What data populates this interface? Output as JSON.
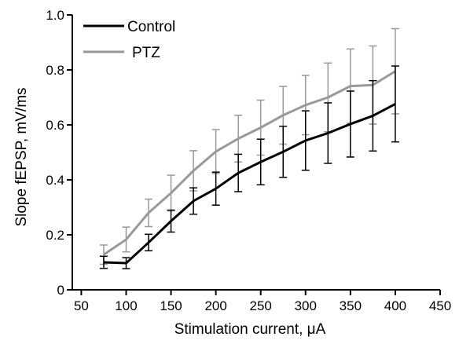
{
  "chart_data": {
    "type": "line",
    "xlabel": "Stimulation current, μA",
    "ylabel": "Slope fEPSP, mV/ms",
    "xlim": [
      40,
      450
    ],
    "ylim": [
      0,
      1.0
    ],
    "x_ticks": [
      50,
      100,
      150,
      200,
      250,
      300,
      350,
      400,
      450
    ],
    "y_ticks": [
      0,
      0.2,
      0.4,
      0.6,
      0.8,
      1.0
    ],
    "x_tick_labels": [
      "50",
      "100",
      "150",
      "200",
      "250",
      "300",
      "350",
      "400",
      "450"
    ],
    "y_tick_labels": [
      "0",
      "0.2",
      "0.4",
      "0.6",
      "0.8",
      "1.0"
    ],
    "grid": false,
    "legend_position": "top-left",
    "x": [
      75,
      100,
      125,
      150,
      175,
      200,
      225,
      250,
      275,
      300,
      325,
      350,
      375,
      400
    ],
    "series": [
      {
        "name": "Control",
        "color": "#000000",
        "values": [
          0.1,
          0.097,
          0.172,
          0.25,
          0.323,
          0.368,
          0.425,
          0.465,
          0.502,
          0.543,
          0.57,
          0.603,
          0.633,
          0.676
        ],
        "error": [
          0.022,
          0.02,
          0.03,
          0.04,
          0.048,
          0.06,
          0.068,
          0.083,
          0.093,
          0.108,
          0.11,
          0.12,
          0.128,
          0.138
        ]
      },
      {
        "name": "PTZ",
        "color": "#999999",
        "values": [
          0.128,
          0.183,
          0.28,
          0.352,
          0.433,
          0.503,
          0.55,
          0.59,
          0.635,
          0.672,
          0.7,
          0.741,
          0.745,
          0.795
        ],
        "error": [
          0.035,
          0.045,
          0.05,
          0.065,
          0.073,
          0.08,
          0.085,
          0.1,
          0.105,
          0.108,
          0.125,
          0.135,
          0.142,
          0.155
        ]
      }
    ]
  }
}
